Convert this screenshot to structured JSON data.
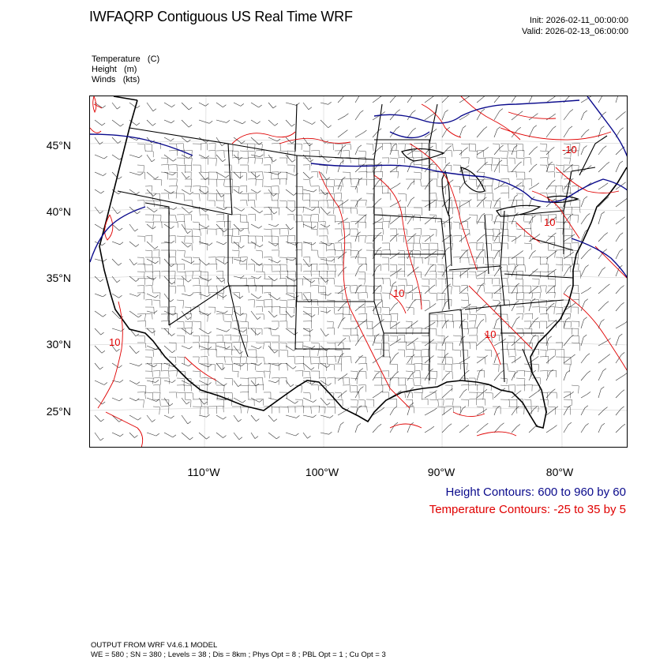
{
  "header": {
    "title": "IWFAQRP Contiguous US Real Time WRF",
    "init": "Init: 2026-02-11_00:00:00",
    "valid": "Valid: 2026-02-13_06:00:00"
  },
  "fields": [
    "Temperature   (C)",
    "Height   (m)",
    "Winds   (kts)"
  ],
  "axes": {
    "lat_labels": [
      "45°N",
      "40°N",
      "35°N",
      "30°N",
      "25°N"
    ],
    "lon_labels": [
      "110°W",
      "100°W",
      "90°W",
      "80°W"
    ]
  },
  "legend": {
    "height": "Height Contours: 600 to 960 by 60",
    "temperature": "Temperature Contours: -25 to 35 by 5"
  },
  "contour_labels": [
    "-10",
    "10",
    "10",
    "10",
    "10"
  ],
  "footer": {
    "line1": "OUTPUT FROM WRF V4.6.1 MODEL",
    "line2": "WE = 580 ; SN = 380 ; Levels = 38 ; Dis = 8km ; Phys Opt = 8 ; PBL Opt = 1 ; Cu Opt = 3"
  },
  "colors": {
    "height_contour": "#0a0a8c",
    "temperature_contour": "#e00000",
    "borders": "#000000"
  }
}
